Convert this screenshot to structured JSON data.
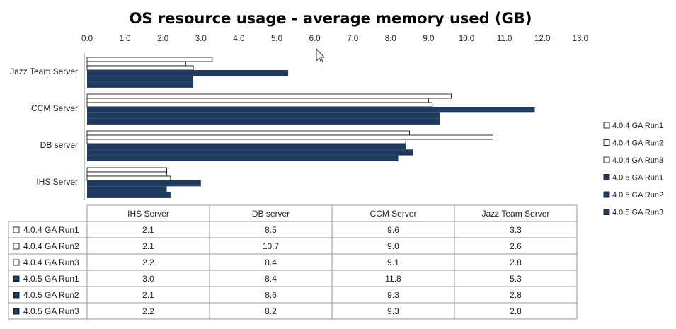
{
  "chart_data": {
    "type": "bar",
    "orientation": "horizontal",
    "title": "OS resource usage - average memory used (GB)",
    "xlim": [
      0,
      13
    ],
    "x_ticks": [
      "0.0",
      "1.0",
      "2.0",
      "3.0",
      "4.0",
      "5.0",
      "6.0",
      "7.0",
      "8.0",
      "9.0",
      "10.0",
      "11.0",
      "12.0",
      "13.0"
    ],
    "categories": [
      "IHS Server",
      "DB server",
      "CCM Server",
      "Jazz Team Server"
    ],
    "series": [
      {
        "name": "4.0.4 GA Run1",
        "values": [
          2.1,
          8.5,
          9.6,
          3.3
        ],
        "color": "#ffffff"
      },
      {
        "name": "4.0.4 GA Run2",
        "values": [
          2.1,
          10.7,
          9.0,
          2.6
        ],
        "color": "#ffffff"
      },
      {
        "name": "4.0.4 GA Run3",
        "values": [
          2.2,
          8.4,
          9.1,
          2.8
        ],
        "color": "#ffffff"
      },
      {
        "name": "4.0.5 GA Run1",
        "values": [
          3.0,
          8.4,
          11.8,
          5.3
        ],
        "color": "#1f3a5f"
      },
      {
        "name": "4.0.5 GA Run2",
        "values": [
          2.1,
          8.6,
          9.3,
          2.8
        ],
        "color": "#1f3a5f"
      },
      {
        "name": "4.0.5 GA Run3",
        "values": [
          2.2,
          8.2,
          9.3,
          2.8
        ],
        "color": "#1f3a5f"
      }
    ],
    "table": {
      "rows": [
        [
          "2.1",
          "8.5",
          "9.6",
          "3.3"
        ],
        [
          "2.1",
          "10.7",
          "9.0",
          "2.6"
        ],
        [
          "2.2",
          "8.4",
          "9.1",
          "2.8"
        ],
        [
          "3.0",
          "8.4",
          "11.8",
          "5.3"
        ],
        [
          "2.1",
          "8.6",
          "9.3",
          "2.8"
        ],
        [
          "2.2",
          "8.2",
          "9.3",
          "2.8"
        ]
      ]
    },
    "legend_position": "right",
    "grid": false,
    "colors": {
      "dark": "#1f3a5f",
      "light": "#ffffff",
      "outline": "#000000"
    }
  }
}
